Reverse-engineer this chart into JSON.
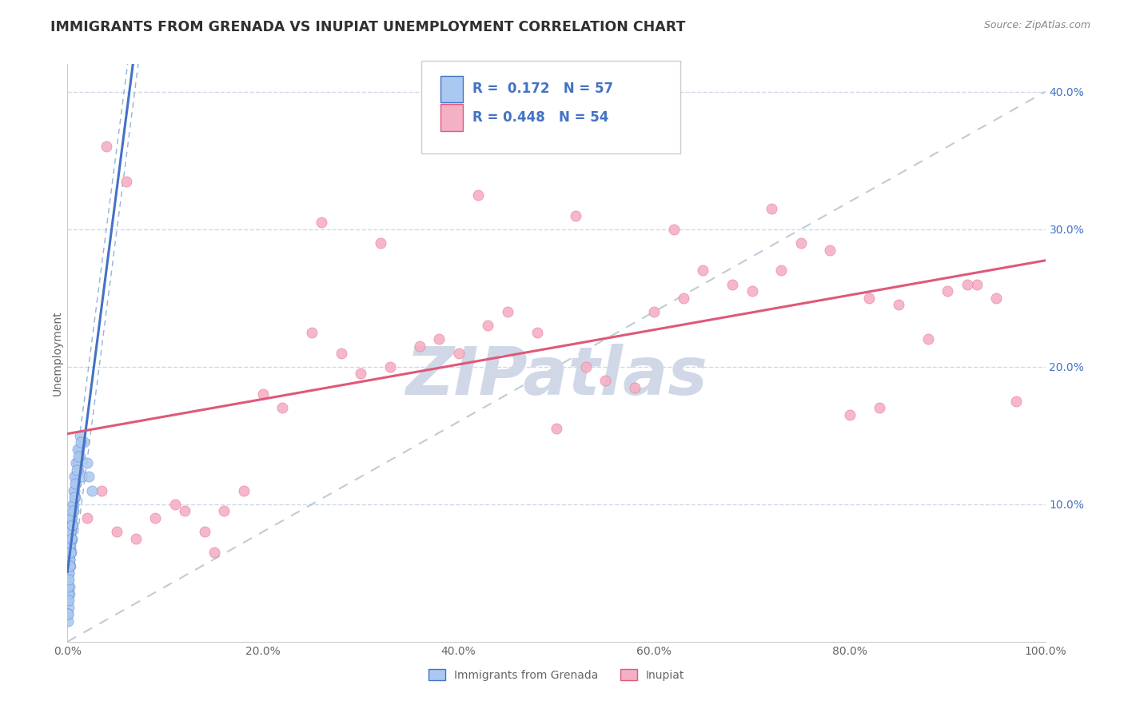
{
  "title": "IMMIGRANTS FROM GRENADA VS INUPIAT UNEMPLOYMENT CORRELATION CHART",
  "source": "Source: ZipAtlas.com",
  "ylabel": "Unemployment",
  "watermark": "ZIPatlas",
  "legend_blue_r": "0.172",
  "legend_blue_n": "57",
  "legend_pink_r": "0.448",
  "legend_pink_n": "54",
  "blue_scatter_x": [
    0.05,
    0.08,
    0.12,
    0.15,
    0.18,
    0.22,
    0.25,
    0.28,
    0.3,
    0.35,
    0.4,
    0.45,
    0.5,
    0.55,
    0.6,
    0.65,
    0.7,
    0.75,
    0.8,
    0.9,
    1.0,
    1.1,
    1.2,
    1.3,
    1.5,
    1.7,
    2.0,
    2.2,
    2.5,
    0.03,
    0.04,
    0.06,
    0.07,
    0.09,
    0.1,
    0.13,
    0.16,
    0.19,
    0.21,
    0.24,
    0.27,
    0.32,
    0.38,
    0.42,
    0.48,
    0.52,
    0.58,
    0.62,
    0.68,
    0.72,
    0.78,
    0.85,
    0.95,
    1.05,
    1.15,
    1.25,
    1.4
  ],
  "blue_scatter_y": [
    3.0,
    4.5,
    2.5,
    5.0,
    3.5,
    6.0,
    4.0,
    5.5,
    7.0,
    6.5,
    8.0,
    7.5,
    9.0,
    8.5,
    10.0,
    9.5,
    11.0,
    10.5,
    12.0,
    11.5,
    13.0,
    12.5,
    14.0,
    13.5,
    12.0,
    14.5,
    13.0,
    12.0,
    11.0,
    2.0,
    1.5,
    3.5,
    2.0,
    4.0,
    3.0,
    5.0,
    4.5,
    6.0,
    5.5,
    7.0,
    6.5,
    8.0,
    7.5,
    9.0,
    8.5,
    10.0,
    9.5,
    11.0,
    10.5,
    12.0,
    11.5,
    13.0,
    12.5,
    14.0,
    13.5,
    15.0,
    14.5
  ],
  "pink_scatter_x": [
    1.0,
    2.0,
    3.5,
    5.0,
    7.0,
    9.0,
    11.0,
    14.0,
    16.0,
    18.0,
    20.0,
    22.0,
    25.0,
    28.0,
    30.0,
    33.0,
    36.0,
    38.0,
    40.0,
    43.0,
    45.0,
    48.0,
    50.0,
    53.0,
    55.0,
    58.0,
    60.0,
    63.0,
    65.0,
    68.0,
    70.0,
    73.0,
    75.0,
    78.0,
    80.0,
    83.0,
    85.0,
    88.0,
    90.0,
    93.0,
    95.0,
    97.0,
    12.0,
    15.0,
    4.0,
    6.0,
    26.0,
    32.0,
    42.0,
    52.0,
    62.0,
    72.0,
    82.0,
    92.0
  ],
  "pink_scatter_y": [
    13.0,
    9.0,
    11.0,
    8.0,
    7.5,
    9.0,
    10.0,
    8.0,
    9.5,
    11.0,
    18.0,
    17.0,
    22.5,
    21.0,
    19.5,
    20.0,
    21.5,
    22.0,
    21.0,
    23.0,
    24.0,
    22.5,
    15.5,
    20.0,
    19.0,
    18.5,
    24.0,
    25.0,
    27.0,
    26.0,
    25.5,
    27.0,
    29.0,
    28.5,
    16.5,
    17.0,
    24.5,
    22.0,
    25.5,
    26.0,
    25.0,
    17.5,
    9.5,
    6.5,
    36.0,
    33.5,
    30.5,
    29.0,
    32.5,
    31.0,
    30.0,
    31.5,
    25.0,
    26.0
  ],
  "xlim": [
    0,
    100
  ],
  "ylim": [
    0,
    42
  ],
  "xtick_vals": [
    0,
    20,
    40,
    60,
    80,
    100
  ],
  "xtick_labels": [
    "0.0%",
    "20.0%",
    "40.0%",
    "60.0%",
    "80.0%",
    "100.0%"
  ],
  "ytick_vals": [
    10,
    20,
    30,
    40
  ],
  "ytick_labels": [
    "10.0%",
    "20.0%",
    "30.0%",
    "40.0%"
  ],
  "blue_color": "#aac8f0",
  "pink_color": "#f4b0c4",
  "blue_line_color": "#4472c4",
  "pink_line_color": "#e05878",
  "dashed_line_color": "#aabccc",
  "blue_dash_color": "#7a9fd0",
  "grid_color": "#d0d8e8",
  "background_color": "#ffffff",
  "title_color": "#303030",
  "source_color": "#888888",
  "legend_text_color": "#4472c4",
  "watermark_color": "#d0d8e8",
  "marker_size": 90,
  "title_fontsize": 12.5,
  "axis_label_fontsize": 10,
  "tick_fontsize": 10,
  "legend_fontsize": 12,
  "ytick_label_color": "#4472c4"
}
